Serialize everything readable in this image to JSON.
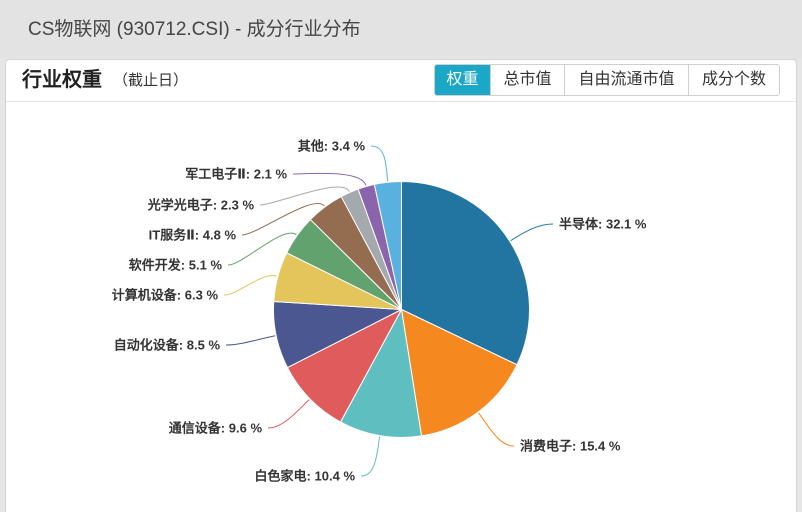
{
  "header": {
    "title": "CS物联网 (930712.CSI) - 成分行业分布"
  },
  "panel": {
    "title": "行业权重",
    "subtitle": "（截止日）",
    "tabs": [
      {
        "label": "权重",
        "active": true
      },
      {
        "label": "总市值",
        "active": false
      },
      {
        "label": "自由流通市值",
        "active": false
      },
      {
        "label": "成分个数",
        "active": false
      }
    ]
  },
  "colors": {
    "accent": "#1ba8c7"
  },
  "chart_data": {
    "type": "pie",
    "unit": "%",
    "label_position": "outside",
    "legend": "none",
    "categories": [
      "半导体",
      "消费电子",
      "白色家电",
      "通信设备",
      "自动化设备",
      "计算机设备",
      "软件开发",
      "IT服务Ⅱ",
      "光学光电子",
      "军工电子Ⅱ",
      "其他"
    ],
    "values": [
      32.1,
      15.4,
      10.4,
      9.6,
      8.5,
      6.3,
      5.1,
      4.8,
      2.3,
      2.1,
      3.4
    ],
    "colors": [
      "#2275a0",
      "#f5881f",
      "#5fbec0",
      "#e05b5b",
      "#4a5790",
      "#e3c55b",
      "#62a26f",
      "#946c4f",
      "#a4a9ae",
      "#8b65ac",
      "#59b1e0"
    ]
  }
}
